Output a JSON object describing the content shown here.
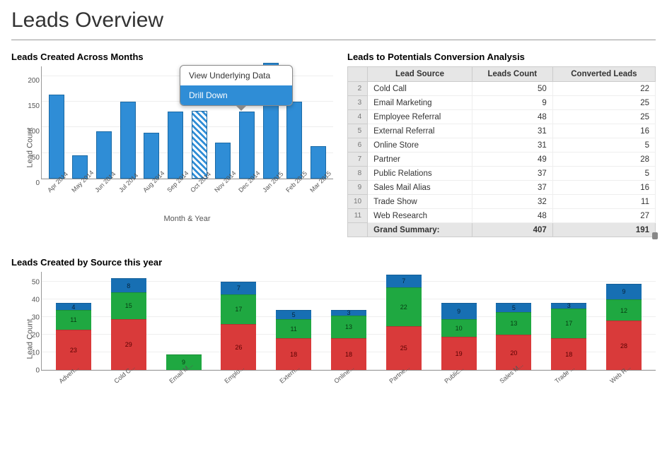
{
  "page_title": "Leads Overview",
  "chart_months": {
    "title": "Leads Created Across Months",
    "type": "bar",
    "ylabel": "Lead Count",
    "xlabel": "Month & Year",
    "ylim": [
      0,
      220
    ],
    "ytick_step": 50,
    "yticks": [
      0,
      50,
      100,
      150,
      200
    ],
    "bar_color": "#2f8dd6",
    "bar_border": "#1b6aa5",
    "grid_color": "#eeeeee",
    "hatched_index": 6,
    "categories": [
      "Apr 2014",
      "May 2014",
      "Jun 2014",
      "Jul 2014",
      "Aug 2014",
      "Sep 2014",
      "Oct 2014",
      "Nov 2014",
      "Dec 2014",
      "Jan 2015",
      "Feb 2015",
      "Mar 2015"
    ],
    "values": [
      163,
      45,
      92,
      150,
      90,
      130,
      132,
      70,
      130,
      225,
      150,
      63
    ],
    "context_menu": {
      "items": [
        "View Underlying Data",
        "Drill Down"
      ],
      "selected_index": 1
    }
  },
  "conversion_table": {
    "title": "Leads to Potentials Conversion Analysis",
    "columns": [
      "Lead Source",
      "Leads Count",
      "Converted Leads"
    ],
    "start_row_number": 2,
    "rows": [
      {
        "source": "Cold Call",
        "count": 50,
        "converted": 22
      },
      {
        "source": "Email Marketing",
        "count": 9,
        "converted": 25
      },
      {
        "source": "Employee Referral",
        "count": 48,
        "converted": 25
      },
      {
        "source": "External Referral",
        "count": 31,
        "converted": 16
      },
      {
        "source": "Online Store",
        "count": 31,
        "converted": 5
      },
      {
        "source": "Partner",
        "count": 49,
        "converted": 28
      },
      {
        "source": "Public Relations",
        "count": 37,
        "converted": 5
      },
      {
        "source": "Sales Mail Alias",
        "count": 37,
        "converted": 16
      },
      {
        "source": "Trade Show",
        "count": 32,
        "converted": 11
      },
      {
        "source": "Web Research",
        "count": 48,
        "converted": 27
      }
    ],
    "summary_label": "Grand Summary:",
    "summary_count": 407,
    "summary_converted": 191
  },
  "chart_source": {
    "title": "Leads Created by Source this year",
    "type": "stacked-bar",
    "ylabel": "Lead Count",
    "ylim": [
      0,
      56
    ],
    "yticks": [
      0,
      10,
      20,
      30,
      40,
      50
    ],
    "colors": {
      "red": "#d93a3a",
      "green": "#1fa841",
      "blue": "#176fb3"
    },
    "grid_color": "#eeeeee",
    "categories": [
      "Advert...",
      "Cold C...",
      "Email M...",
      "Emplo...",
      "Extern...",
      "Online...",
      "Partne...",
      "Public...",
      "Sales M...",
      "Trade ...",
      "Web R..."
    ],
    "series": [
      {
        "red": 23,
        "green": 11,
        "blue": 4
      },
      {
        "red": 29,
        "green": 15,
        "blue": 8
      },
      {
        "red": 0,
        "green": 9,
        "blue": 0
      },
      {
        "red": 26,
        "green": 17,
        "blue": 7
      },
      {
        "red": 18,
        "green": 11,
        "blue": 5
      },
      {
        "red": 18,
        "green": 13,
        "blue": 3
      },
      {
        "red": 25,
        "green": 22,
        "blue": 7
      },
      {
        "red": 19,
        "green": 10,
        "blue": 9
      },
      {
        "red": 20,
        "green": 13,
        "blue": 5
      },
      {
        "red": 18,
        "green": 17,
        "blue": 3
      },
      {
        "red": 28,
        "green": 12,
        "blue": 9
      }
    ]
  }
}
